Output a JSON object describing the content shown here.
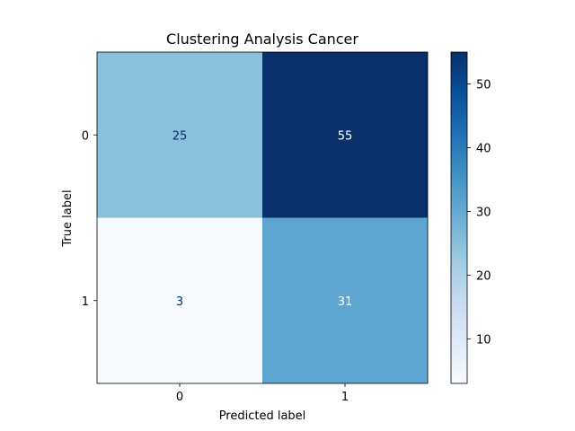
{
  "chart_data": {
    "type": "heatmap",
    "title": "Clustering Analysis Cancer",
    "xlabel": "Predicted label",
    "ylabel": "True label",
    "x_categories": [
      "0",
      "1"
    ],
    "y_categories": [
      "0",
      "1"
    ],
    "values": [
      [
        25,
        55
      ],
      [
        3,
        31
      ]
    ],
    "colormap": "Blues",
    "color_range": [
      3,
      55
    ],
    "colorbar_ticks": [
      10,
      20,
      30,
      40,
      50
    ],
    "colorbar_tick_labels": [
      "10",
      "20",
      "30",
      "40",
      "50"
    ],
    "grid": false
  }
}
